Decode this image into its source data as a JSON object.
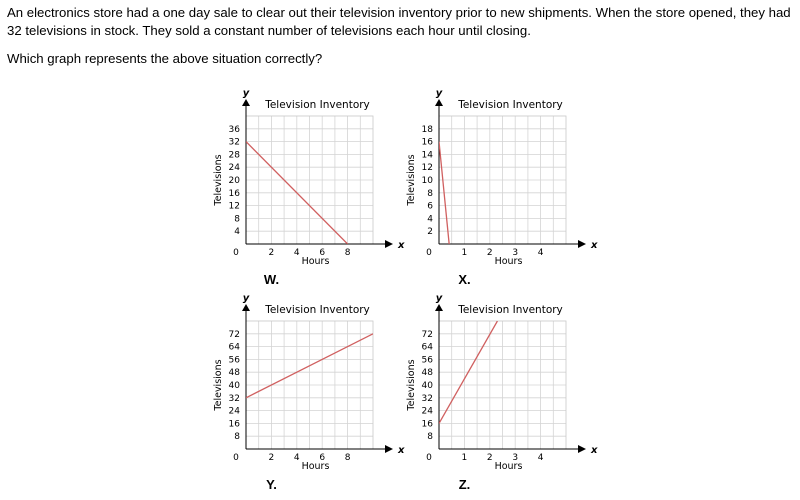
{
  "question": {
    "text": "An electronics store had a one day sale to clear out their television inventory prior to new shipments. When the store opened, they had 32 televisions in stock. They sold a constant number of televisions each hour until closing.",
    "prompt": "Which graph represents the above situation correctly?"
  },
  "colors": {
    "line": "#d06060",
    "grid": "#d4d4d4"
  },
  "chart_data": [
    {
      "type": "line",
      "option": "W.",
      "title": "Television Inventory",
      "xlabel": "Hours",
      "ylabel": "Televisions",
      "x_letter": "x",
      "y_letter": "y",
      "xlim": [
        0,
        10
      ],
      "ylim": [
        0,
        40
      ],
      "xticks": [
        2,
        4,
        6,
        8
      ],
      "yticks": [
        4,
        8,
        12,
        16,
        20,
        24,
        28,
        32,
        36
      ],
      "origin_label": "0",
      "grid": true,
      "series": [
        {
          "x": [
            0,
            8
          ],
          "y": [
            32,
            0
          ]
        }
      ]
    },
    {
      "type": "line",
      "option": "X.",
      "title": "Television Inventory",
      "xlabel": "Hours",
      "ylabel": "Televisions",
      "x_letter": "x",
      "y_letter": "y",
      "xlim": [
        0,
        5
      ],
      "ylim": [
        0,
        20
      ],
      "xticks": [
        1,
        2,
        3,
        4
      ],
      "yticks": [
        2,
        4,
        6,
        8,
        10,
        12,
        14,
        16,
        18
      ],
      "origin_label": "0",
      "grid": true,
      "series": [
        {
          "x": [
            0,
            0.4
          ],
          "y": [
            16,
            0
          ]
        }
      ]
    },
    {
      "type": "line",
      "option": "Y.",
      "title": "Television Inventory",
      "xlabel": "Hours",
      "ylabel": "Televisions",
      "x_letter": "x",
      "y_letter": "y",
      "xlim": [
        0,
        10
      ],
      "ylim": [
        0,
        80
      ],
      "xticks": [
        2,
        4,
        6,
        8
      ],
      "yticks": [
        8,
        16,
        24,
        32,
        40,
        48,
        56,
        64,
        72
      ],
      "origin_label": "0",
      "grid": true,
      "series": [
        {
          "x": [
            0,
            10
          ],
          "y": [
            32,
            72
          ]
        }
      ]
    },
    {
      "type": "line",
      "option": "Z.",
      "title": "Television Inventory",
      "xlabel": "Hours",
      "ylabel": "Televisions",
      "x_letter": "x",
      "y_letter": "y",
      "xlim": [
        0,
        5
      ],
      "ylim": [
        0,
        80
      ],
      "xticks": [
        1,
        2,
        3,
        4
      ],
      "yticks": [
        8,
        16,
        24,
        32,
        40,
        48,
        56,
        64,
        72
      ],
      "origin_label": "0",
      "grid": true,
      "series": [
        {
          "x": [
            0,
            2.3
          ],
          "y": [
            16,
            80
          ]
        }
      ]
    }
  ]
}
